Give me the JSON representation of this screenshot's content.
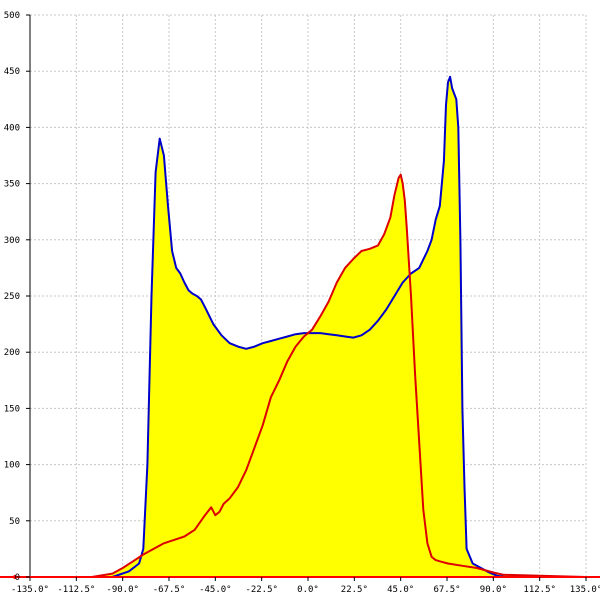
{
  "chart_data": {
    "type": "area",
    "title": "",
    "xlabel": "",
    "ylabel": "",
    "xlim": [
      -135,
      135
    ],
    "ylim": [
      0,
      500
    ],
    "grid": true,
    "x_ticks": [
      "-135.0°",
      "-112.5°",
      "-90.0°",
      "-67.5°",
      "-45.0°",
      "-22.5°",
      "0.0°",
      "22.5°",
      "45.0°",
      "67.5°",
      "90.0°",
      "112.5°",
      "135.0°"
    ],
    "x_tick_values": [
      -135,
      -112.5,
      -90,
      -67.5,
      -45,
      -22.5,
      0,
      22.5,
      45,
      67.5,
      90,
      112.5,
      135
    ],
    "y_ticks": [
      "0",
      "50",
      "100",
      "150",
      "200",
      "250",
      "300",
      "350",
      "400",
      "450",
      "500"
    ],
    "y_tick_values": [
      0,
      50,
      100,
      150,
      200,
      250,
      300,
      350,
      400,
      450,
      500
    ],
    "series": [
      {
        "color": "#0000cc",
        "x": [
          -135,
          -95,
          -87,
          -82,
          -80,
          -78,
          -76,
          -74,
          -72,
          -70,
          -68,
          -66,
          -64,
          -62,
          -60,
          -58,
          -56,
          -54,
          -52,
          -50,
          -46,
          -42,
          -38,
          -34,
          -30,
          -26,
          -22,
          -18,
          -14,
          -10,
          -6,
          -2,
          2,
          6,
          10,
          14,
          18,
          22,
          26,
          30,
          34,
          38,
          42,
          46,
          50,
          54,
          58,
          60,
          62,
          64,
          66,
          67,
          68,
          69,
          70,
          72,
          73,
          74,
          75,
          76,
          77,
          80,
          84,
          88,
          92,
          96,
          135
        ],
        "y": [
          0,
          0,
          5,
          12,
          25,
          100,
          250,
          360,
          390,
          375,
          330,
          290,
          275,
          270,
          262,
          255,
          252,
          250,
          247,
          240,
          225,
          215,
          208,
          205,
          203,
          205,
          208,
          210,
          212,
          214,
          216,
          217,
          217,
          217,
          216,
          215,
          214,
          213,
          215,
          220,
          228,
          238,
          250,
          262,
          270,
          275,
          290,
          300,
          318,
          330,
          370,
          420,
          440,
          445,
          435,
          425,
          400,
          300,
          150,
          80,
          25,
          12,
          8,
          4,
          1,
          0,
          0
        ]
      },
      {
        "color": "#dd0000",
        "x": [
          -135,
          -105,
          -95,
          -90,
          -85,
          -80,
          -75,
          -70,
          -65,
          -60,
          -55,
          -50,
          -47,
          -45,
          -43,
          -41,
          -38,
          -34,
          -30,
          -26,
          -22,
          -18,
          -14,
          -10,
          -6,
          -2,
          2,
          6,
          10,
          14,
          18,
          22,
          26,
          30,
          34,
          37,
          40,
          42,
          44,
          45,
          46,
          47,
          48,
          50,
          52,
          54,
          56,
          58,
          60,
          62,
          64,
          68,
          75,
          82,
          90,
          95,
          135
        ],
        "y": [
          0,
          0,
          3,
          8,
          14,
          20,
          25,
          30,
          33,
          36,
          42,
          55,
          62,
          55,
          58,
          65,
          70,
          80,
          95,
          115,
          135,
          160,
          175,
          192,
          205,
          214,
          220,
          232,
          245,
          262,
          275,
          283,
          290,
          292,
          295,
          305,
          320,
          340,
          355,
          358,
          350,
          335,
          310,
          250,
          180,
          120,
          60,
          30,
          18,
          15,
          14,
          12,
          10,
          8,
          4,
          2,
          0
        ]
      }
    ]
  },
  "colors": {
    "fill": "#ffff00",
    "grid": "#c8c8c8",
    "axis": "#000000",
    "baseline": "#ff0000"
  }
}
